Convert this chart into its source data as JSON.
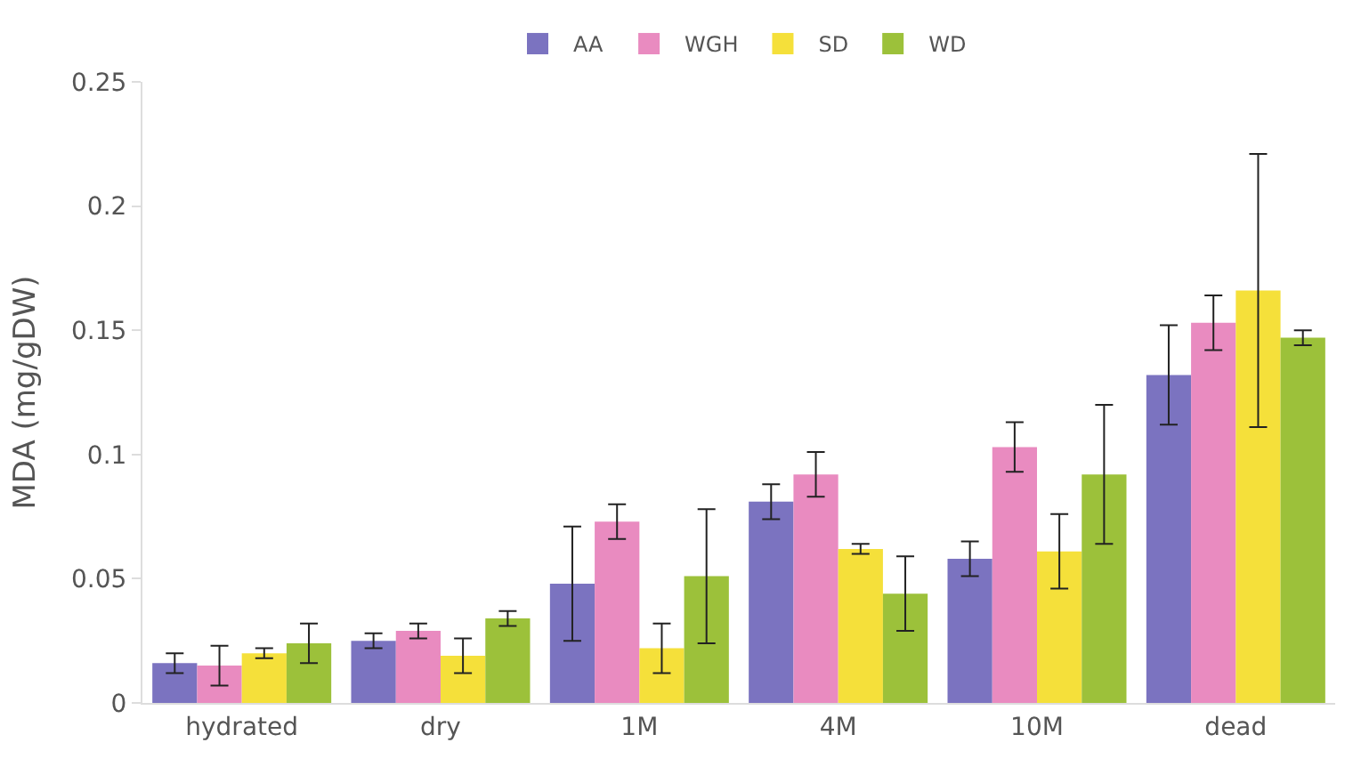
{
  "chart_data": {
    "type": "bar",
    "ylabel": "MDA (mg/gDW)",
    "categories": [
      "hydrated",
      "dry",
      "1M",
      "4M",
      "10M",
      "dead"
    ],
    "ylim": [
      0,
      0.25
    ],
    "yticks": [
      0,
      0.05,
      0.1,
      0.15,
      0.2,
      0.25
    ],
    "legend": "top",
    "series": [
      {
        "name": "AA",
        "color": "#7b73c0",
        "values": [
          0.016,
          0.025,
          0.048,
          0.081,
          0.058,
          0.132
        ],
        "errors": [
          0.004,
          0.003,
          0.023,
          0.007,
          0.007,
          0.02
        ]
      },
      {
        "name": "WGH",
        "color": "#e98bc0",
        "values": [
          0.015,
          0.029,
          0.073,
          0.092,
          0.103,
          0.153
        ],
        "errors": [
          0.008,
          0.003,
          0.007,
          0.009,
          0.01,
          0.011
        ]
      },
      {
        "name": "SD",
        "color": "#f5e03a",
        "values": [
          0.02,
          0.019,
          0.022,
          0.062,
          0.061,
          0.166
        ],
        "errors": [
          0.002,
          0.007,
          0.01,
          0.002,
          0.015,
          0.055
        ]
      },
      {
        "name": "WD",
        "color": "#9cc13a",
        "values": [
          0.024,
          0.034,
          0.051,
          0.044,
          0.092,
          0.147
        ],
        "errors": [
          0.008,
          0.003,
          0.027,
          0.015,
          0.028,
          0.003
        ]
      }
    ]
  }
}
